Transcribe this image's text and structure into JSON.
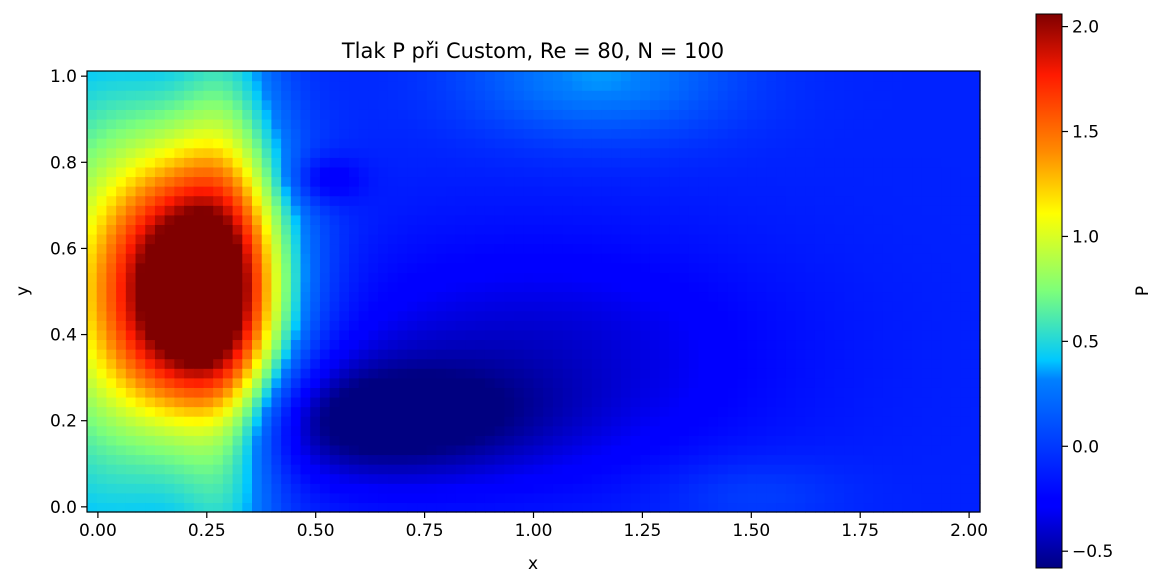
{
  "chart_data": {
    "type": "heatmap",
    "title": "Tlak P při Custom, Re = 80, N = 100",
    "xlabel": "x",
    "ylabel": "y",
    "xlim": [
      -0.025,
      2.025
    ],
    "ylim": [
      -0.012,
      1.012
    ],
    "xticks": [
      0.0,
      0.25,
      0.5,
      0.75,
      1.0,
      1.25,
      1.5,
      1.75,
      2.0
    ],
    "xtick_labels": [
      "0.00",
      "0.25",
      "0.50",
      "0.75",
      "1.00",
      "1.25",
      "1.50",
      "1.75",
      "2.00"
    ],
    "yticks": [
      0.0,
      0.2,
      0.4,
      0.6,
      0.8,
      1.0
    ],
    "ytick_labels": [
      "0.0",
      "0.2",
      "0.4",
      "0.6",
      "0.8",
      "1.0"
    ],
    "colormap": "jet",
    "colorbar": {
      "label": "P",
      "range": [
        -0.58,
        2.06
      ],
      "ticks": [
        -0.5,
        0.0,
        0.5,
        1.0,
        1.5,
        2.0
      ],
      "tick_labels": [
        "−0.5",
        "0.0",
        "0.5",
        "1.0",
        "1.5",
        "2.0"
      ]
    },
    "grid": false,
    "features": [
      {
        "kind": "maximum",
        "x": 0.24,
        "y": 0.5,
        "P": 2.05
      },
      {
        "kind": "minimum",
        "x": 0.6,
        "y": 0.22,
        "P": -0.55
      },
      {
        "kind": "local_minimum",
        "x": 0.52,
        "y": 0.76,
        "P": -0.35
      },
      {
        "kind": "local_maximum",
        "x": 1.15,
        "y": 0.97,
        "P": 0.35
      }
    ]
  }
}
